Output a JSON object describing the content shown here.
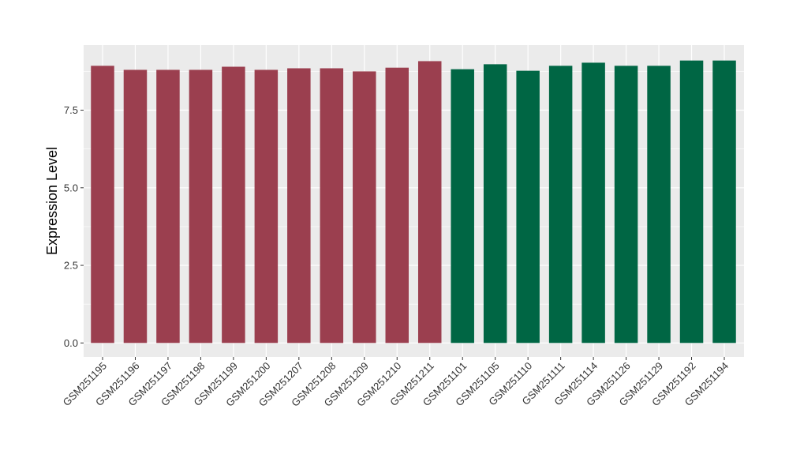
{
  "chart_data": {
    "type": "bar",
    "title": "",
    "xlabel": "",
    "ylabel": "Expression Level",
    "ylim": [
      -0.45,
      9.6
    ],
    "yticks": [
      "0.0",
      "2.5",
      "5.0",
      "7.5"
    ],
    "grid": true,
    "legend": "none",
    "categories": [
      "GSM251195",
      "GSM251196",
      "GSM251197",
      "GSM251198",
      "GSM251199",
      "GSM251200",
      "GSM251207",
      "GSM251208",
      "GSM251209",
      "GSM251210",
      "GSM251211",
      "GSM251101",
      "GSM251105",
      "GSM251110",
      "GSM251111",
      "GSM251114",
      "GSM251126",
      "GSM251129",
      "GSM251192",
      "GSM251194"
    ],
    "values": [
      8.93,
      8.8,
      8.8,
      8.8,
      8.9,
      8.8,
      8.85,
      8.85,
      8.75,
      8.87,
      9.08,
      8.82,
      8.98,
      8.77,
      8.93,
      9.03,
      8.93,
      8.93,
      9.1,
      9.1
    ],
    "bar_colors": [
      "#9b3f4f",
      "#9b3f4f",
      "#9b3f4f",
      "#9b3f4f",
      "#9b3f4f",
      "#9b3f4f",
      "#9b3f4f",
      "#9b3f4f",
      "#9b3f4f",
      "#9b3f4f",
      "#9b3f4f",
      "#006644",
      "#006644",
      "#006644",
      "#006644",
      "#006644",
      "#006644",
      "#006644",
      "#006644",
      "#006644"
    ]
  },
  "colors": {
    "panel_background": "#ebebeb",
    "grid_major": "#ffffff",
    "group_a": "#9b3f4f",
    "group_b": "#006644"
  }
}
